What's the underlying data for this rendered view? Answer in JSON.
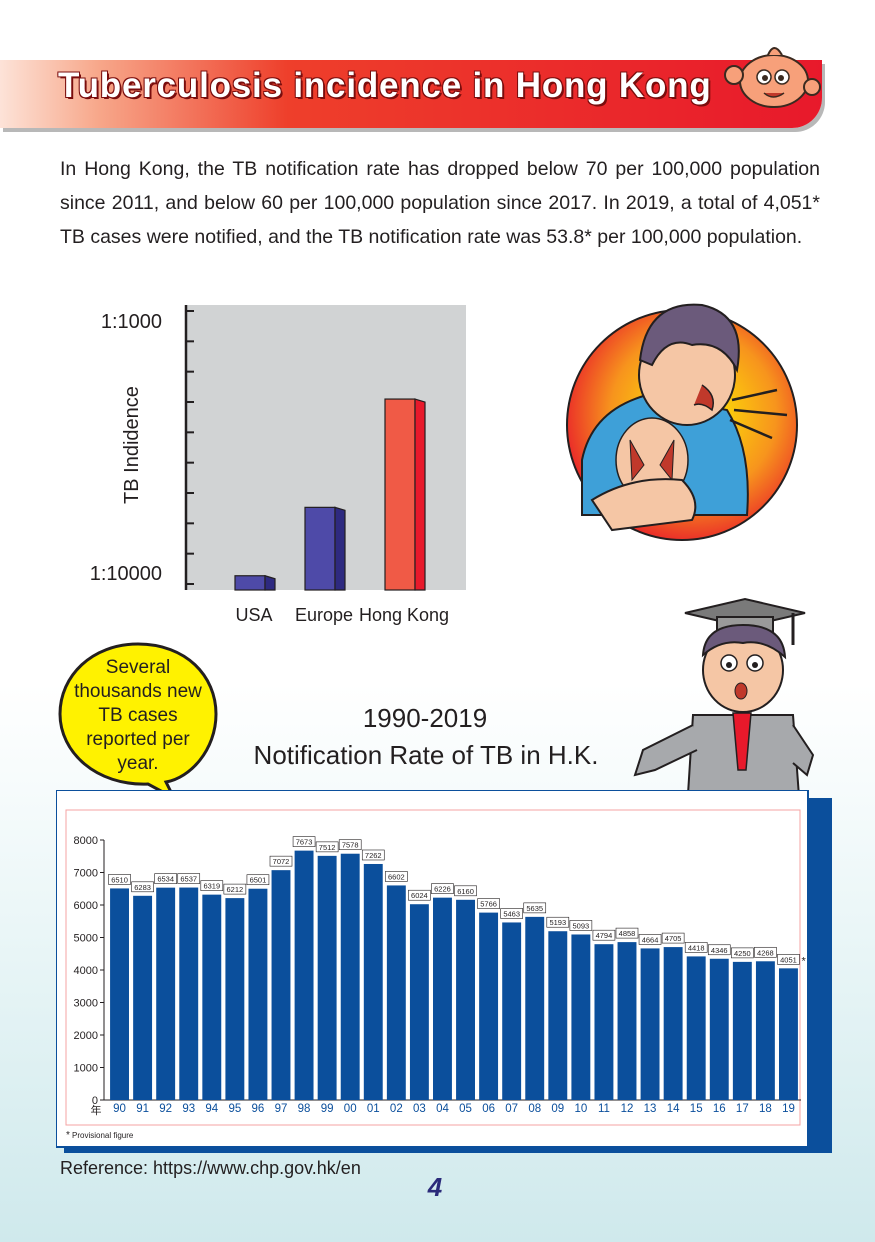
{
  "header": {
    "title": "Tuberculosis incidence in Hong Kong"
  },
  "intro": {
    "paragraph": "In Hong Kong, the TB notification rate has dropped below 70 per 100,000 population since 2011, and below 60 per 100,000 population since 2017. In 2019, a total of 4,051* TB cases were notified, and the TB notification rate was 53.8* per 100,000 population."
  },
  "speech_bubble": {
    "text": "Several thousands new TB cases reported per year."
  },
  "colors": {
    "banner_red": "#e8192b",
    "bar_blue": "#0b4f9c",
    "usa_europe_purple": "#4e4aa8",
    "hong_kong_red": "#f05a46"
  },
  "chart_data": [
    {
      "type": "bar",
      "title": "",
      "ylabel": "TB Indidence",
      "ytick_top": "1:1000",
      "ytick_bottom": "1:10000",
      "categories": [
        "USA",
        "Europe",
        "Hong Kong"
      ],
      "values": [
        0.05,
        0.29,
        0.67
      ],
      "value_unit": "fraction of axis height (relative; values not printed)",
      "grid": false
    },
    {
      "type": "bar",
      "title_years": "1990-2019",
      "title": "Notification Rate of TB in H.K.",
      "xaxis_unit": "年",
      "categories": [
        "90",
        "91",
        "92",
        "93",
        "94",
        "95",
        "96",
        "97",
        "98",
        "99",
        "00",
        "01",
        "02",
        "03",
        "04",
        "05",
        "06",
        "07",
        "08",
        "09",
        "10",
        "11",
        "12",
        "13",
        "14",
        "15",
        "16",
        "17",
        "18",
        "19"
      ],
      "values": [
        6510,
        6283,
        6534,
        6537,
        6319,
        6212,
        6501,
        7072,
        7673,
        7512,
        7578,
        7262,
        6602,
        6024,
        6226,
        6160,
        5766,
        5463,
        5635,
        5193,
        5093,
        4794,
        4858,
        4664,
        4705,
        4418,
        4346,
        4250,
        4268,
        4051
      ],
      "value_labels": [
        "6510",
        "6283",
        "6534",
        "6537",
        "6319",
        "6212",
        "6501",
        "7072",
        "7673",
        "7512",
        "7578",
        "7262",
        "6602",
        "6024",
        "6226",
        "6160",
        "5766",
        "5463",
        "5635",
        "5193",
        "5093",
        "4794",
        "4858",
        "4664",
        "4705",
        "4418",
        "4346",
        "4250",
        "4268",
        "4051"
      ],
      "last_value_mark": "*",
      "yticks": [
        0,
        1000,
        2000,
        3000,
        4000,
        5000,
        6000,
        7000,
        8000
      ],
      "ylim": [
        0,
        8000
      ],
      "footnote": "Provisional figure",
      "footnote_mark": "*",
      "grid": false
    }
  ],
  "footer": {
    "reference": "Reference: https://www.chp.gov.hk/en",
    "page_number": "4"
  }
}
